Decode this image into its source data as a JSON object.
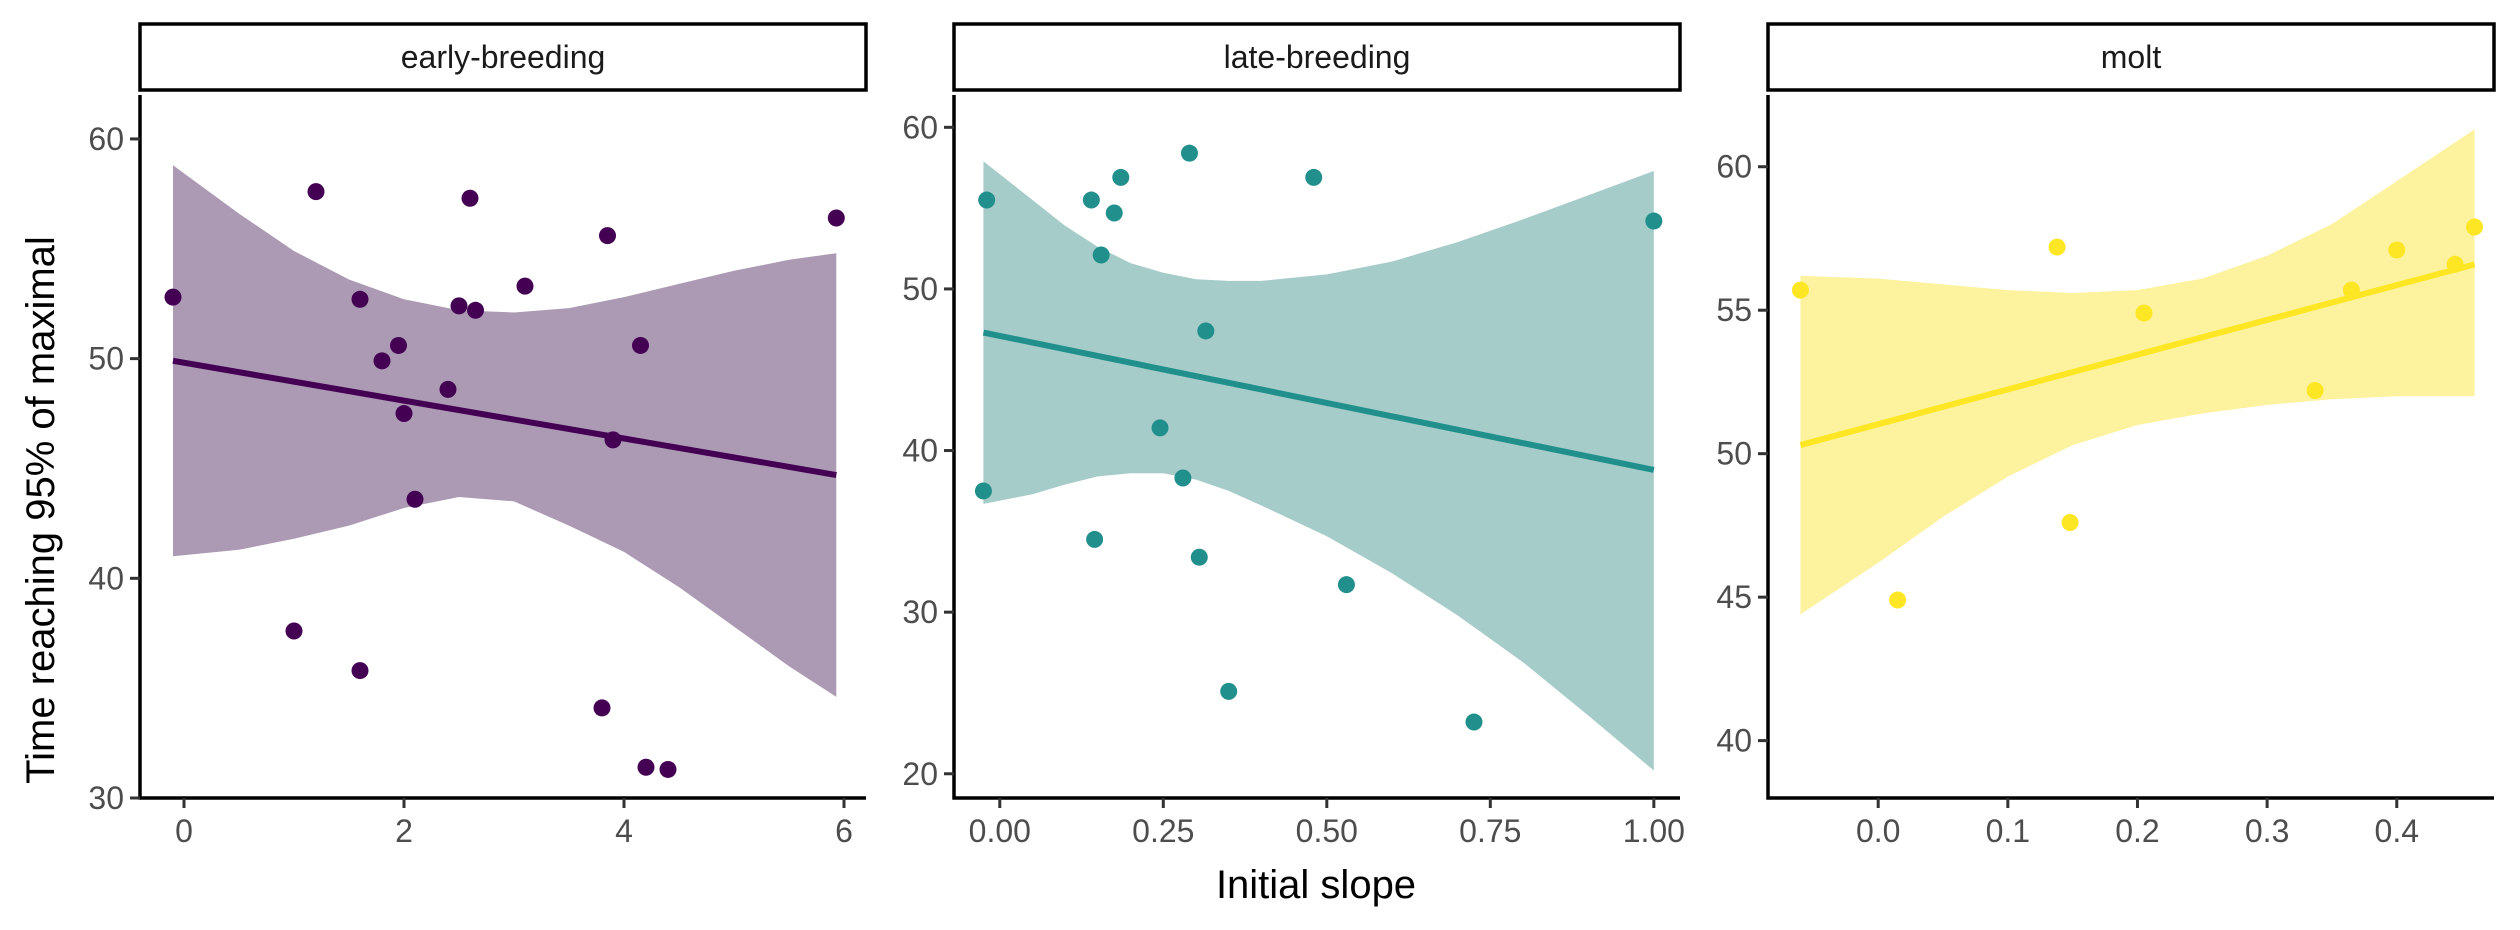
{
  "chart_data": {
    "type": "scatter",
    "xlabel": "Initial slope",
    "ylabel": "Time reaching 95% of maximal",
    "grid": false,
    "legend": "none",
    "panels": [
      {
        "name": "early-breeding",
        "color": "#440154",
        "band_color": "#ac9ab4",
        "xlim": [
          -0.4,
          6.2
        ],
        "ylim": [
          30,
          62
        ],
        "xticks": [
          0,
          2,
          4,
          6
        ],
        "xtick_labels": [
          "0",
          "2",
          "4",
          "6"
        ],
        "yticks": [
          30,
          40,
          50,
          60
        ],
        "ytick_labels": [
          "30",
          "40",
          "50",
          "60"
        ],
        "points": [
          [
            -0.1,
            52.8
          ],
          [
            1.2,
            57.6
          ],
          [
            1.6,
            52.7
          ],
          [
            1.0,
            37.6
          ],
          [
            1.6,
            35.8
          ],
          [
            1.8,
            49.9
          ],
          [
            1.95,
            50.6
          ],
          [
            2.0,
            47.5
          ],
          [
            2.1,
            43.6
          ],
          [
            2.4,
            48.6
          ],
          [
            2.5,
            52.4
          ],
          [
            2.6,
            57.3
          ],
          [
            2.65,
            52.2
          ],
          [
            3.1,
            53.3
          ],
          [
            3.8,
            34.1
          ],
          [
            3.85,
            55.6
          ],
          [
            3.9,
            46.3
          ],
          [
            4.15,
            50.6
          ],
          [
            4.2,
            31.4
          ],
          [
            4.4,
            31.3
          ],
          [
            5.93,
            56.4
          ]
        ],
        "fit": {
          "x": [
            -0.1,
            5.93
          ],
          "y": [
            49.9,
            44.7
          ]
        },
        "band": {
          "x": [
            -0.1,
            0.5,
            1.0,
            1.5,
            2.0,
            2.5,
            3.0,
            3.5,
            4.0,
            4.5,
            5.0,
            5.5,
            5.93
          ],
          "upper": [
            58.8,
            56.6,
            54.9,
            53.6,
            52.7,
            52.2,
            52.1,
            52.3,
            52.8,
            53.4,
            54.0,
            54.5,
            54.8
          ],
          "lower": [
            41.0,
            41.3,
            41.8,
            42.4,
            43.2,
            43.7,
            43.5,
            42.4,
            41.2,
            39.6,
            37.8,
            36.0,
            34.6
          ]
        }
      },
      {
        "name": "late-breeding",
        "color": "#21908c",
        "band_color": "#a6ccca",
        "xlim": [
          -0.07,
          1.04
        ],
        "ylim": [
          18.5,
          62
        ],
        "xticks": [
          0,
          0.25,
          0.5,
          0.75,
          1.0
        ],
        "xtick_labels": [
          "0.00",
          "0.25",
          "0.50",
          "0.75",
          "1.00"
        ],
        "yticks": [
          20,
          30,
          40,
          50,
          60
        ],
        "ytick_labels": [
          "20",
          "30",
          "40",
          "50",
          "60"
        ],
        "points": [
          [
            -0.02,
            55.5
          ],
          [
            -0.025,
            37.5
          ],
          [
            0.14,
            55.5
          ],
          [
            0.145,
            34.5
          ],
          [
            0.155,
            52.1
          ],
          [
            0.175,
            54.7
          ],
          [
            0.185,
            56.9
          ],
          [
            0.245,
            41.4
          ],
          [
            0.28,
            38.3
          ],
          [
            0.29,
            58.4
          ],
          [
            0.305,
            33.4
          ],
          [
            0.315,
            47.4
          ],
          [
            0.35,
            25.1
          ],
          [
            0.48,
            56.9
          ],
          [
            0.53,
            31.7
          ],
          [
            0.725,
            23.2
          ],
          [
            1.0,
            54.2
          ]
        ],
        "fit": {
          "x": [
            -0.025,
            1.0
          ],
          "y": [
            47.3,
            38.8
          ]
        },
        "band": {
          "x": [
            -0.025,
            0.05,
            0.1,
            0.15,
            0.2,
            0.25,
            0.3,
            0.35,
            0.4,
            0.5,
            0.6,
            0.7,
            0.8,
            0.9,
            1.0
          ],
          "upper": [
            57.9,
            55.5,
            53.9,
            52.6,
            51.6,
            51.0,
            50.6,
            50.5,
            50.5,
            50.9,
            51.7,
            52.9,
            54.3,
            55.8,
            57.3
          ],
          "lower": [
            36.7,
            37.3,
            37.9,
            38.4,
            38.6,
            38.6,
            38.2,
            37.5,
            36.6,
            34.7,
            32.4,
            29.8,
            26.9,
            23.6,
            20.2
          ]
        }
      },
      {
        "name": "molt",
        "color": "#fde725",
        "band_color": "#fdf29e",
        "xlim": [
          -0.085,
          0.475
        ],
        "ylim": [
          38,
          62.5
        ],
        "xticks": [
          0,
          0.1,
          0.2,
          0.3,
          0.4
        ],
        "xtick_labels": [
          "0.0",
          "0.1",
          "0.2",
          "0.3",
          "0.4"
        ],
        "yticks": [
          40,
          45,
          50,
          55,
          60
        ],
        "ytick_labels": [
          "40",
          "45",
          "50",
          "55",
          "60"
        ],
        "points": [
          [
            -0.06,
            55.7
          ],
          [
            0.015,
            44.9
          ],
          [
            0.138,
            57.2
          ],
          [
            0.148,
            47.6
          ],
          [
            0.205,
            54.9
          ],
          [
            0.337,
            52.2
          ],
          [
            0.365,
            55.7
          ],
          [
            0.4,
            57.1
          ],
          [
            0.445,
            56.6
          ],
          [
            0.46,
            57.9
          ]
        ],
        "fit": {
          "x": [
            -0.06,
            0.46
          ],
          "y": [
            50.3,
            56.6
          ]
        },
        "band": {
          "x": [
            -0.06,
            0.0,
            0.05,
            0.1,
            0.15,
            0.2,
            0.25,
            0.3,
            0.35,
            0.4,
            0.46
          ],
          "upper": [
            56.2,
            56.1,
            55.9,
            55.7,
            55.6,
            55.7,
            56.1,
            56.9,
            58.0,
            59.5,
            61.3
          ],
          "lower": [
            44.4,
            46.2,
            47.8,
            49.2,
            50.3,
            51.0,
            51.4,
            51.7,
            51.9,
            52.0,
            52.0
          ]
        }
      }
    ]
  }
}
